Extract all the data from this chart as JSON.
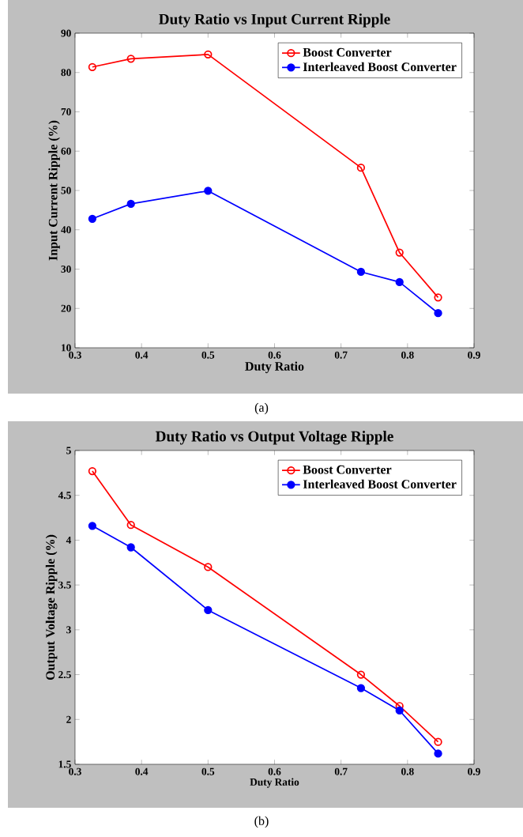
{
  "chart_data": [
    {
      "type": "line",
      "title": "Duty Ratio vs Input Current Ripple",
      "xlabel": "Duty Ratio",
      "ylabel": "Input Current Ripple (%)",
      "annotations": [
        "(a)"
      ],
      "x": [
        0.326,
        0.384,
        0.5,
        0.73,
        0.788,
        0.846
      ],
      "series": [
        {
          "name": "Boost Converter",
          "color": "#ff0000",
          "values": [
            81.4,
            83.5,
            84.6,
            55.8,
            34.2,
            22.8
          ]
        },
        {
          "name": "Interleaved Boost Converter",
          "color": "#0000ff",
          "values": [
            42.8,
            46.6,
            49.9,
            29.3,
            26.7,
            18.8
          ]
        }
      ],
      "xlim": [
        0.3,
        0.9
      ],
      "ylim": [
        10,
        90
      ],
      "xticks": [
        0.3,
        0.4,
        0.5,
        0.6,
        0.7,
        0.8,
        0.9
      ],
      "yticks": [
        10,
        20,
        30,
        40,
        50,
        60,
        70,
        80,
        90
      ],
      "legend": "top right",
      "marker": "circle",
      "line_style": "solid",
      "grid": false
    },
    {
      "type": "line",
      "title": "Duty Ratio vs Output Voltage Ripple",
      "xlabel": "Duty Ratio",
      "ylabel": "Output Voltage Ripple (%)",
      "annotations": [
        "(b)"
      ],
      "x": [
        0.326,
        0.384,
        0.5,
        0.73,
        0.788,
        0.846
      ],
      "series": [
        {
          "name": "Boost Converter",
          "color": "#ff0000",
          "values": [
            4.77,
            4.17,
            3.7,
            2.5,
            2.15,
            1.75
          ]
        },
        {
          "name": "Interleaved Boost Converter",
          "color": "#0000ff",
          "values": [
            4.16,
            3.92,
            3.22,
            2.35,
            2.1,
            1.62
          ]
        }
      ],
      "xlim": [
        0.3,
        0.9
      ],
      "ylim": [
        1.5,
        5
      ],
      "xticks": [
        0.3,
        0.4,
        0.5,
        0.6,
        0.7,
        0.8,
        0.9
      ],
      "yticks": [
        1.5,
        2,
        2.5,
        3,
        3.5,
        4,
        4.5,
        5
      ],
      "legend": "top right",
      "marker": "circle",
      "line_style": "solid",
      "grid": false
    }
  ]
}
